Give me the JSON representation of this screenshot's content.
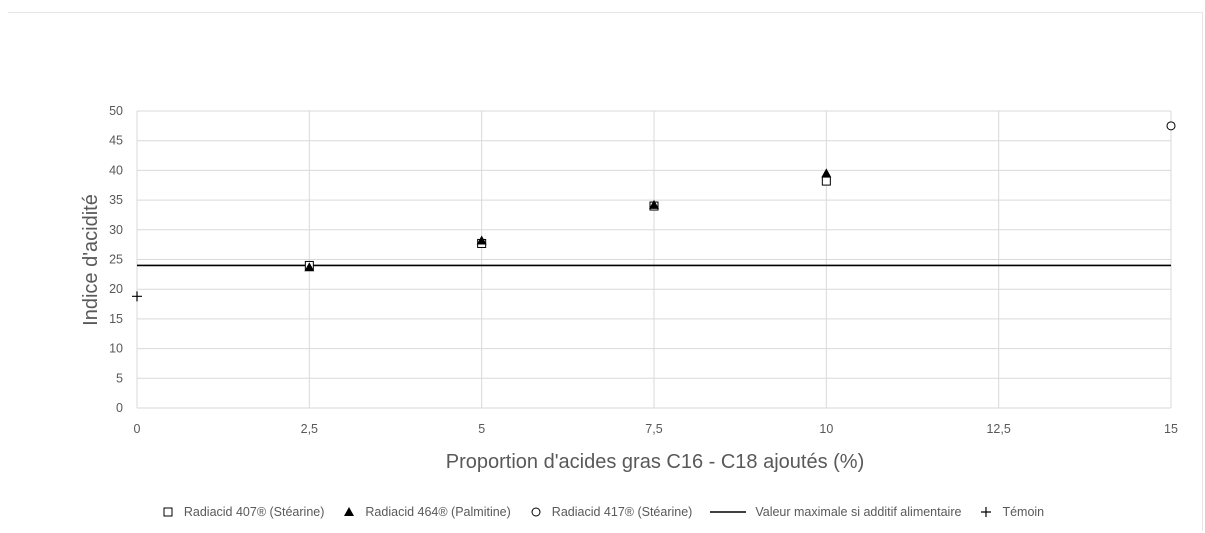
{
  "chart_data": {
    "type": "scatter",
    "xlabel": "Proportion d'acides gras C16 - C18  ajoutés (%)",
    "ylabel": "Indice d'acidité",
    "xlim": [
      0,
      15
    ],
    "ylim": [
      0,
      50
    ],
    "x_ticks": [
      "0",
      "2,5",
      "5",
      "7,5",
      "10",
      "12,5",
      "15"
    ],
    "y_ticks": [
      "0",
      "5",
      "10",
      "15",
      "20",
      "25",
      "30",
      "35",
      "40",
      "45",
      "50"
    ],
    "grid": true,
    "legend_position": "bottom",
    "series": [
      {
        "name": "Radiacid 407® (Stéarine)",
        "marker": "square-open",
        "color": "#000000",
        "points": [
          [
            2.5,
            24.0
          ],
          [
            5,
            27.7
          ],
          [
            7.5,
            34.0
          ],
          [
            10,
            38.2
          ]
        ]
      },
      {
        "name": "Radiacid 464® (Palmitine)",
        "marker": "triangle-filled",
        "color": "#000000",
        "points": [
          [
            2.5,
            23.7
          ],
          [
            5,
            28.2
          ],
          [
            7.5,
            34.2
          ],
          [
            10,
            39.5
          ]
        ]
      },
      {
        "name": "Radiacid 417® (Stéarine)",
        "marker": "circle-open",
        "color": "#000000",
        "points": [
          [
            15,
            47.5
          ]
        ]
      },
      {
        "name": "Valeur maximale si additif alimentaire",
        "marker": "line",
        "color": "#000000",
        "value": 24
      },
      {
        "name": "Témoin",
        "marker": "plus",
        "color": "#000000",
        "points": [
          [
            0,
            18.8
          ]
        ]
      }
    ]
  }
}
